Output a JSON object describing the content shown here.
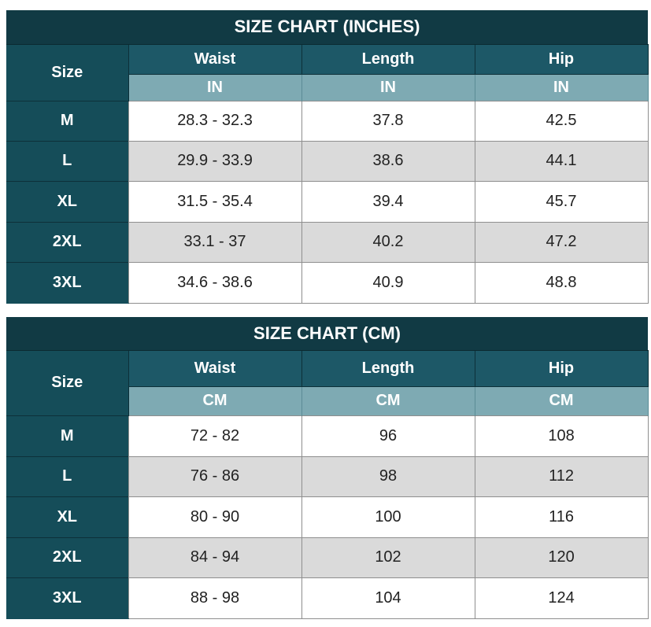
{
  "inches": {
    "title": "SIZE CHART (INCHES)",
    "size_header": "Size",
    "columns": [
      "Waist",
      "Length",
      "Hip"
    ],
    "units": [
      "IN",
      "IN",
      "IN"
    ],
    "rows": [
      {
        "size": "M",
        "waist": "28.3 - 32.3",
        "length": "37.8",
        "hip": "42.5"
      },
      {
        "size": "L",
        "waist": "29.9 - 33.9",
        "length": "38.6",
        "hip": "44.1"
      },
      {
        "size": "XL",
        "waist": "31.5 - 35.4",
        "length": "39.4",
        "hip": "45.7"
      },
      {
        "size": "2XL",
        "waist": "33.1 - 37",
        "length": "40.2",
        "hip": "47.2"
      },
      {
        "size": "3XL",
        "waist": "34.6 - 38.6",
        "length": "40.9",
        "hip": "48.8"
      }
    ]
  },
  "cm": {
    "title": "SIZE CHART (CM)",
    "size_header": "Size",
    "columns": [
      "Waist",
      "Length",
      "Hip"
    ],
    "units": [
      "CM",
      "CM",
      "CM"
    ],
    "rows": [
      {
        "size": "M",
        "waist": "72 - 82",
        "length": "96",
        "hip": "108"
      },
      {
        "size": "L",
        "waist": "76 - 86",
        "length": "98",
        "hip": "112"
      },
      {
        "size": "XL",
        "waist": "80 - 90",
        "length": "100",
        "hip": "116"
      },
      {
        "size": "2XL",
        "waist": "84 - 94",
        "length": "102",
        "hip": "120"
      },
      {
        "size": "3XL",
        "waist": "88 - 98",
        "length": "104",
        "hip": "124"
      }
    ]
  },
  "colors": {
    "title_bg": "#113a44",
    "header_bg": "#154d59",
    "unit_bg": "#7eaab3",
    "stripe_bg": "#dadada"
  }
}
